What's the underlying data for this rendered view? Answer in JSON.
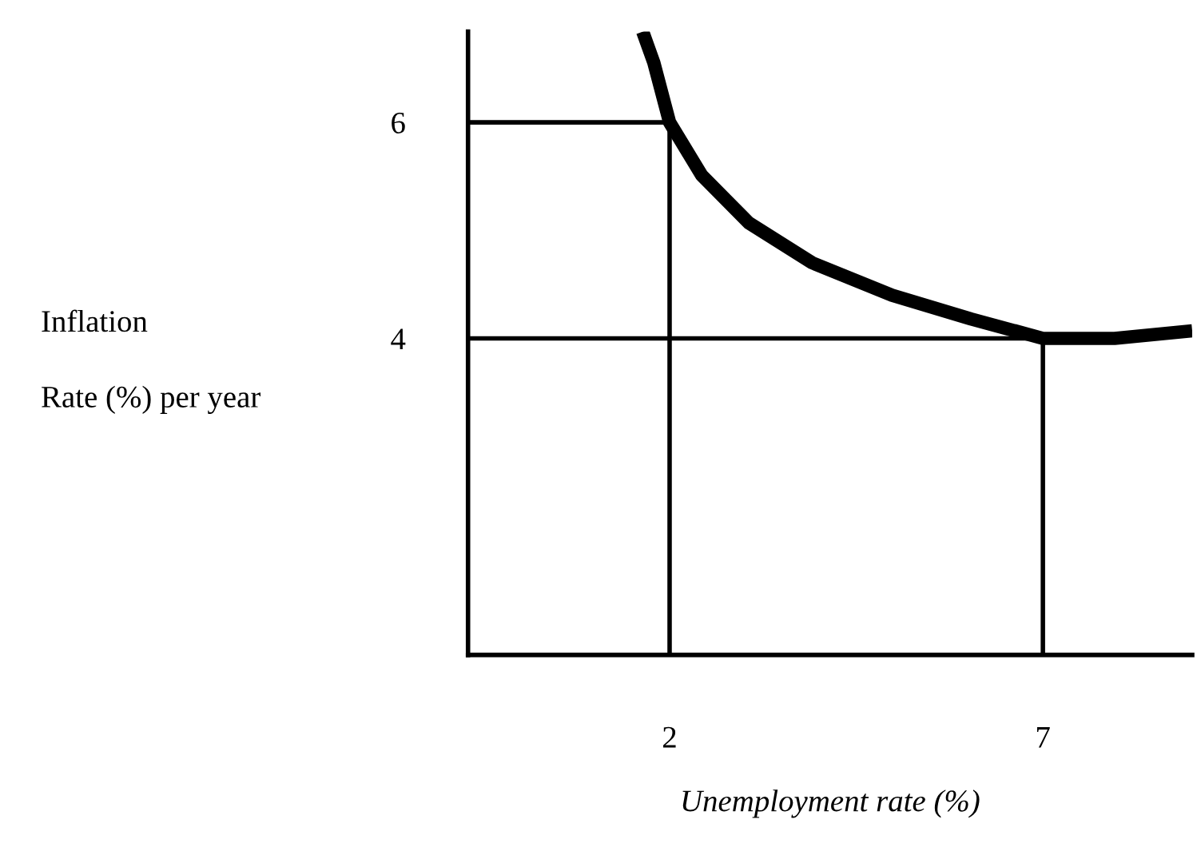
{
  "chart_data": {
    "type": "line",
    "xlabel": "Unemployment rate (%)",
    "ylabel": "Inflation\nRate (%) per year",
    "xlim": [
      -0.7,
      9.0
    ],
    "ylim": [
      1.07,
      6.84
    ],
    "xticks": [
      2,
      7
    ],
    "yticks": [
      6,
      4
    ],
    "grid": false,
    "legend": false,
    "marker": "none",
    "line_style": "solid",
    "series": [
      {
        "color": "#000000",
        "x": [
          1.64,
          1.79,
          2.0,
          2.43,
          3.06,
          3.91,
          4.98,
          6.04,
          7.0,
          7.96,
          9.0
        ],
        "values": [
          6.84,
          6.55,
          6.0,
          5.51,
          5.07,
          4.7,
          4.4,
          4.18,
          4.0,
          4.0,
          4.07
        ]
      },
      {
        "color": "#000000",
        "x": [
          -0.7,
          2.0,
          2.0
        ],
        "values": [
          6.0,
          6.0,
          1.07
        ]
      },
      {
        "color": "#000000",
        "x": [
          -0.7,
          7.0,
          7.0
        ],
        "values": [
          4.0,
          4.0,
          1.07
        ]
      }
    ]
  }
}
